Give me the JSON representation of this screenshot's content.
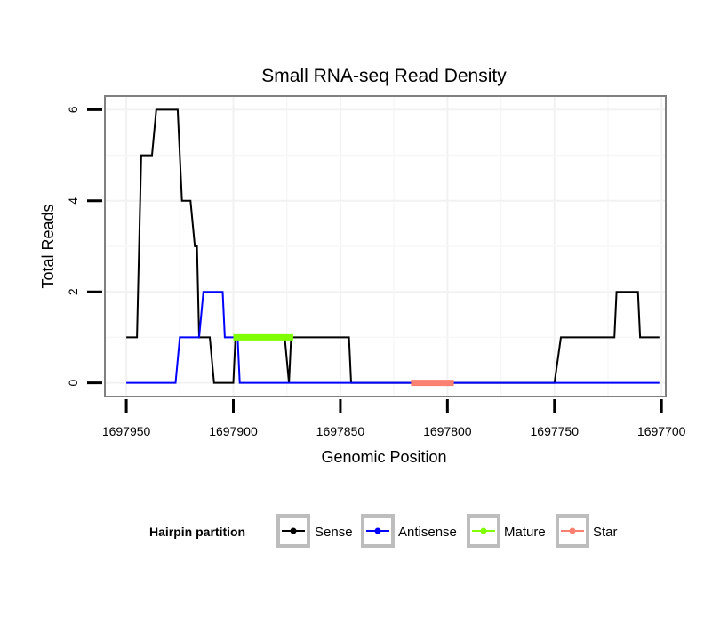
{
  "chart_data": {
    "type": "line",
    "title": "Small RNA-seq Read Density",
    "xlabel": "Genomic Position",
    "ylabel": "Total Reads",
    "x_reversed": true,
    "xlim": [
      1697960,
      1697698
    ],
    "ylim": [
      -0.3,
      6.3
    ],
    "x_ticks": [
      1697950,
      1697900,
      1697850,
      1697800,
      1697750,
      1697700
    ],
    "y_ticks": [
      0,
      2,
      4,
      6
    ],
    "grid": true,
    "legend": {
      "title": "Hairpin partition",
      "position": "bottom",
      "items": [
        {
          "name": "Sense",
          "color": "#000000"
        },
        {
          "name": "Antisense",
          "color": "#0000ff"
        },
        {
          "name": "Mature",
          "color": "#7fff00"
        },
        {
          "name": "Star",
          "color": "#fa8072"
        }
      ]
    },
    "series": [
      {
        "name": "Sense",
        "color": "#000000",
        "points": [
          [
            1697950,
            1
          ],
          [
            1697945,
            1
          ],
          [
            1697943,
            5
          ],
          [
            1697938,
            5
          ],
          [
            1697936,
            6
          ],
          [
            1697926,
            6
          ],
          [
            1697924,
            4
          ],
          [
            1697920,
            4
          ],
          [
            1697918,
            3
          ],
          [
            1697917,
            3
          ],
          [
            1697916,
            1
          ],
          [
            1697911,
            1
          ],
          [
            1697909,
            0
          ],
          [
            1697900,
            0
          ],
          [
            1697899,
            1
          ],
          [
            1697876,
            1
          ],
          [
            1697874,
            0
          ],
          [
            1697873,
            1
          ],
          [
            1697846,
            1
          ],
          [
            1697845,
            0
          ],
          [
            1697750,
            0
          ],
          [
            1697747,
            1
          ],
          [
            1697722,
            1
          ],
          [
            1697721,
            2
          ],
          [
            1697711,
            2
          ],
          [
            1697710,
            1
          ],
          [
            1697701,
            1
          ]
        ]
      },
      {
        "name": "Antisense",
        "color": "#0000ff",
        "points": [
          [
            1697950,
            0
          ],
          [
            1697927,
            0
          ],
          [
            1697925,
            1
          ],
          [
            1697916,
            1
          ],
          [
            1697914,
            2
          ],
          [
            1697905,
            2
          ],
          [
            1697904,
            1
          ],
          [
            1697900,
            1
          ],
          [
            1697898,
            1
          ],
          [
            1697897,
            0
          ],
          [
            1697701,
            0
          ]
        ]
      },
      {
        "name": "Mature",
        "color": "#7fff00",
        "points": [
          [
            1697900,
            1
          ],
          [
            1697872,
            1
          ]
        ]
      },
      {
        "name": "Star",
        "color": "#fa8072",
        "points": [
          [
            1697817,
            0
          ],
          [
            1697797,
            0
          ]
        ]
      }
    ]
  }
}
